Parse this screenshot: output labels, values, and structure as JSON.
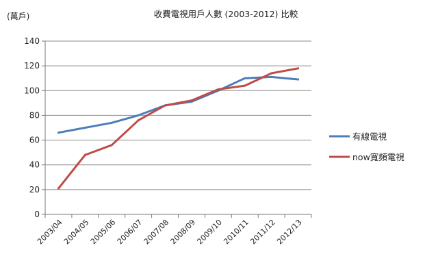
{
  "chart_data": {
    "type": "line",
    "title": "收費電視用戶人數 (2003-2012) 比較",
    "unit_label": "(萬戶)",
    "xlabel": "",
    "ylabel": "",
    "categories": [
      "2003/04",
      "2004/05",
      "2005/06",
      "2006/07",
      "2007/08",
      "2008/09",
      "2009/10",
      "2010/11",
      "2011/12",
      "2012/13"
    ],
    "ylim": [
      0,
      140
    ],
    "yticks": [
      "0",
      "20",
      "40",
      "60",
      "80",
      "100",
      "120",
      "140"
    ],
    "grid": true,
    "legend_position": "right",
    "series": [
      {
        "name": "有線電視",
        "color": "#4a7ebb",
        "values": [
          66,
          70,
          74,
          80,
          88,
          91,
          100,
          110,
          111,
          109
        ]
      },
      {
        "name": "now寬頻電視",
        "color": "#be4b48",
        "values": [
          21,
          48,
          56,
          76,
          88,
          92,
          101,
          104,
          114,
          118
        ]
      }
    ]
  }
}
